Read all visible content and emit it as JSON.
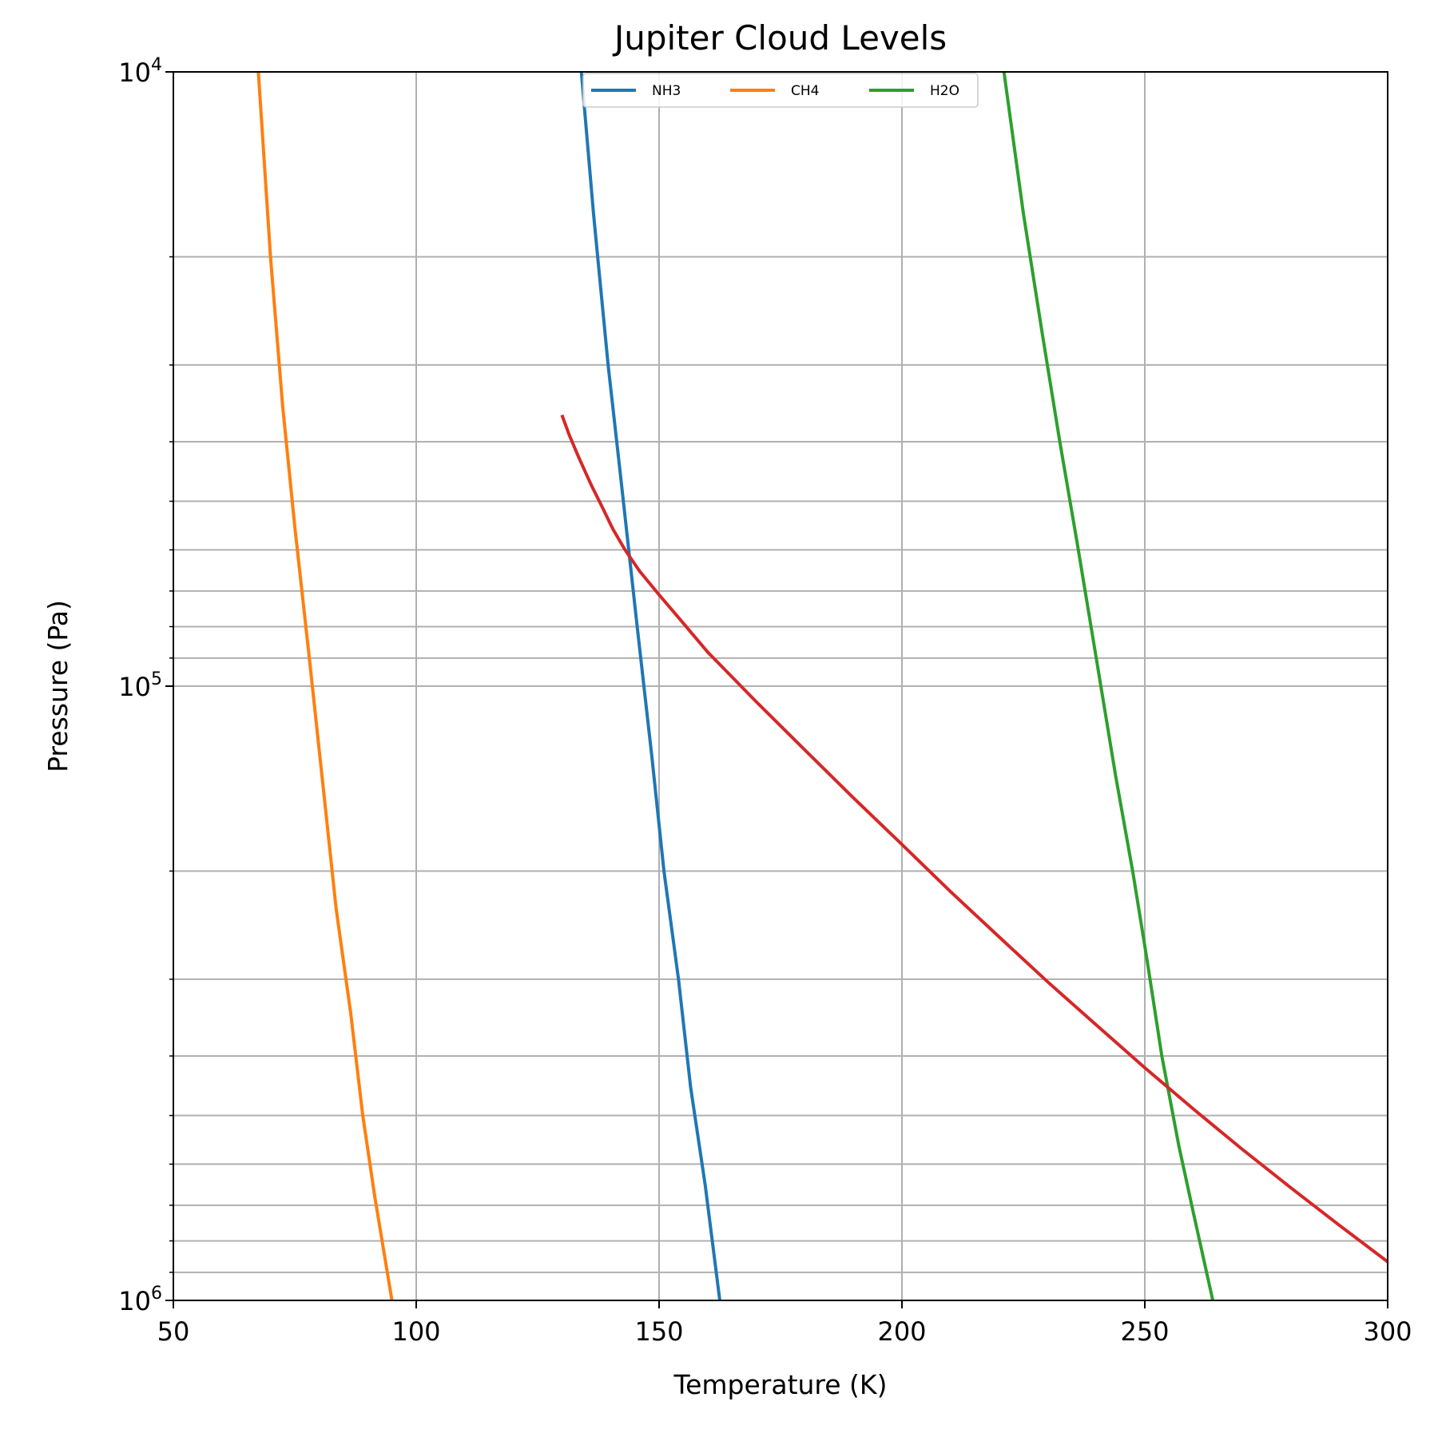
{
  "chart_data": {
    "type": "line",
    "title": "Jupiter Cloud Levels",
    "xlabel": "Temperature (K)",
    "ylabel": "Pressure (Pa)",
    "xlim": [
      50,
      300
    ],
    "ylim": [
      1000000,
      10000
    ],
    "yscale": "log",
    "y_inverted": true,
    "grid": true,
    "legend": {
      "position": "top-center",
      "columns": 3
    },
    "x_ticks": [
      "50",
      "100",
      "150",
      "200",
      "250",
      "300"
    ],
    "y_ticks": [
      {
        "base": "10",
        "exp": "4",
        "value": 10000
      },
      {
        "base": "10",
        "exp": "5",
        "value": 100000
      },
      {
        "base": "10",
        "exp": "6",
        "value": 1000000
      }
    ],
    "series": [
      {
        "name": "NH3",
        "color": "#1f77b4",
        "points": [
          [
            134,
            10000
          ],
          [
            136.5,
            17000
          ],
          [
            139.5,
            30000
          ],
          [
            142,
            45000
          ],
          [
            145.5,
            80000
          ],
          [
            148.5,
            130000
          ],
          [
            151,
            200000
          ],
          [
            154,
            300000
          ],
          [
            156.5,
            450000
          ],
          [
            159.5,
            650000
          ],
          [
            162.5,
            1000000
          ]
        ]
      },
      {
        "name": "CH4",
        "color": "#ff7f0e",
        "points": [
          [
            67.5,
            10000
          ],
          [
            70,
            20000
          ],
          [
            72.5,
            35000
          ],
          [
            75,
            55000
          ],
          [
            78,
            90000
          ],
          [
            81,
            150000
          ],
          [
            83.5,
            230000
          ],
          [
            86.5,
            340000
          ],
          [
            89,
            500000
          ],
          [
            91.5,
            680000
          ],
          [
            95,
            1000000
          ]
        ]
      },
      {
        "name": "H2O",
        "color": "#2ca02c",
        "points": [
          [
            221,
            10000
          ],
          [
            225,
            17000
          ],
          [
            229,
            27000
          ],
          [
            232.5,
            40000
          ],
          [
            236,
            58000
          ],
          [
            240,
            90000
          ],
          [
            244,
            140000
          ],
          [
            247.5,
            200000
          ],
          [
            250.5,
            280000
          ],
          [
            253.5,
            400000
          ],
          [
            257,
            560000
          ],
          [
            260,
            720000
          ],
          [
            264,
            1000000
          ]
        ]
      },
      {
        "name": "",
        "color": "#d62728",
        "points": [
          [
            130,
            36200
          ],
          [
            131.5,
            39000
          ],
          [
            133.5,
            42500
          ],
          [
            136,
            47000
          ],
          [
            138.5,
            51500
          ],
          [
            140.5,
            55500
          ],
          [
            143,
            60000
          ],
          [
            146,
            65000
          ],
          [
            150,
            71000
          ],
          [
            155,
            79000
          ],
          [
            160,
            88000
          ],
          [
            170,
            106000
          ],
          [
            180,
            127000
          ],
          [
            190,
            152000
          ],
          [
            200,
            181000
          ],
          [
            210,
            216000
          ],
          [
            220,
            256000
          ],
          [
            230,
            303000
          ],
          [
            240,
            356000
          ],
          [
            250,
            418000
          ],
          [
            260,
            488000
          ],
          [
            270,
            567000
          ],
          [
            280,
            655000
          ],
          [
            290,
            754000
          ],
          [
            300,
            865000
          ]
        ]
      }
    ]
  }
}
